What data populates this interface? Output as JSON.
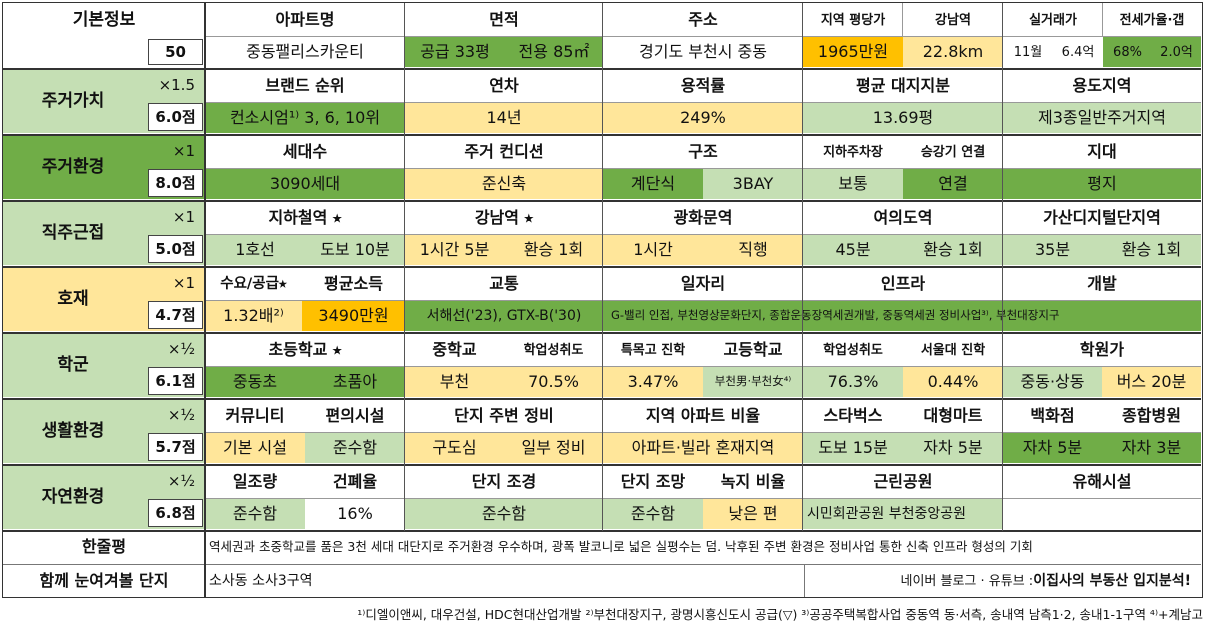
{
  "basic": {
    "label": "기본정보",
    "score": "50",
    "headers": [
      "아파트명",
      "면적",
      "주소",
      "지역 평당가",
      "강남역",
      "실거래가",
      "전세가율·갭"
    ],
    "apt_name": "중동팰리스카운티",
    "area_supply": "공급 33평",
    "area_excl": "전용 85㎡",
    "address": "경기도 부천시 중동",
    "price_per_pyeong": "1965만원",
    "gangnam_dist": "22.8km",
    "deal_month": "11월",
    "deal_price": "6.4억",
    "jeonse_ratio": "68%",
    "gap": "2.0억"
  },
  "sections": {
    "residential_value": {
      "label": "주거가치",
      "mult": "×1.5",
      "score": "6.0점",
      "headers": [
        "브랜드 순위",
        "연차",
        "용적률",
        "평균 대지지분",
        "용도지역"
      ],
      "values": [
        "컨소시엄¹⁾  3, 6, 10위",
        "14년",
        "249%",
        "13.69평",
        "제3종일반주거지역"
      ]
    },
    "residential_env": {
      "label": "주거환경",
      "mult": "×1",
      "score": "8.0점",
      "headers": [
        "세대수",
        "주거 컨디션",
        "구조",
        "지하주차장",
        "승강기 연결",
        "지대"
      ],
      "values": [
        "3090세대",
        "준신축",
        "계단식",
        "3BAY",
        "보통",
        "연결",
        "평지"
      ]
    },
    "commute": {
      "label": "직주근접",
      "mult": "×1",
      "score": "5.0점",
      "headers": [
        "지하철역 ⭑",
        "강남역 ⭑",
        "광화문역",
        "여의도역",
        "가산디지털단지역"
      ],
      "values": [
        "1호선",
        "도보 10분",
        "1시간 5분",
        "환승 1회",
        "1시간",
        "직행",
        "45분",
        "환승 1회",
        "35분",
        "환승 1회"
      ]
    },
    "development": {
      "label": "호재",
      "mult": "×1",
      "score": "4.7점",
      "headers": [
        "수요/공급⭑",
        "평균소득",
        "교통",
        "일자리",
        "인프라",
        "개발"
      ],
      "values": [
        "1.32배²⁾",
        "3490만원",
        "서해선('23), GTX-B('30)",
        "G-밸리 인접, 부천영상문화단지, 종합운동장역세권개발, 중동역세권 정비사업³⁾, 부천대장지구"
      ]
    },
    "school": {
      "label": "학군",
      "mult": "×½",
      "score": "6.1점",
      "headers": [
        "초등학교 ⭑",
        "중학교",
        "학업성취도",
        "특목고 진학",
        "고등학교",
        "학업성취도",
        "서울대 진학",
        "학원가"
      ],
      "values": [
        "중동초",
        "초품아",
        "부천",
        "70.5%",
        "3.47%",
        "부천男·부천女⁴⁾",
        "76.3%",
        "0.44%",
        "중동·상동",
        "버스 20분"
      ]
    },
    "living_env": {
      "label": "생활환경",
      "mult": "×½",
      "score": "5.7점",
      "headers": [
        "커뮤니티",
        "편의시설",
        "단지 주변 정비",
        "지역 아파트 비율",
        "스타벅스",
        "대형마트",
        "백화점",
        "종합병원"
      ],
      "values": [
        "기본 시설",
        "준수함",
        "구도심",
        "일부 정비",
        "아파트·빌라 혼재지역",
        "도보 15분",
        "자차 5분",
        "자차 5분",
        "자차 3분"
      ]
    },
    "natural_env": {
      "label": "자연환경",
      "mult": "×½",
      "score": "6.8점",
      "headers": [
        "일조량",
        "건폐율",
        "단지 조경",
        "단지 조망",
        "녹지 비율",
        "근린공원",
        "유해시설"
      ],
      "values": [
        "준수함",
        "16%",
        "준수함",
        "준수함",
        "낮은 편",
        "시민회관공원 부천중앙공원",
        ""
      ]
    }
  },
  "summary": {
    "label": "한줄평",
    "text": "역세권과 초중학교를 품은 3천 세대 대단지로 주거환경 우수하며, 광폭 발코니로 넓은 실평수는 덤. 낙후된 주변 환경은 정비사업 통한 신축 인프라 형성의 기회"
  },
  "watch": {
    "label": "함께 눈여겨볼 단지",
    "text": "소사동 소사3구역",
    "source_prefix": "네이버 블로그 · 유튜브 : ",
    "source_bold": "이집사의 부동산 입지분석!"
  },
  "footnote": "¹⁾디엘이앤씨, 대우건설, HDC현대산업개발 ²⁾부천대장지구, 광명시흥신도시 공급(▽) ³⁾공공주택복합사업 중동역 동·서측, 송내역 남측1·2, 송내1-1구역 ⁴⁾+계남고",
  "colors": {
    "light_green": "#c5dfb4",
    "green": "#70ad47",
    "yellow": "#ffe69a",
    "orange": "#ffc000"
  }
}
